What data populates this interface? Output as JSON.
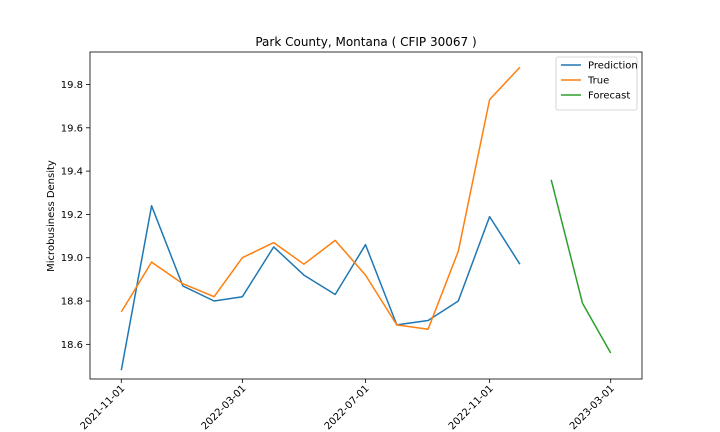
{
  "chart_data": {
    "type": "line",
    "title": "Park County, Montana ( CFIP 30067 )",
    "xlabel": "",
    "ylabel": "Microbusiness Density",
    "x_ticks": [
      "2021-11-01",
      "2022-03-01",
      "2022-07-01",
      "2022-11-01",
      "2023-03-01"
    ],
    "y_ticks": [
      "18.6",
      "18.8",
      "19.0",
      "19.2",
      "19.4",
      "19.6",
      "19.8"
    ],
    "ylim": [
      18.44,
      19.95
    ],
    "xlim": [
      "2021-10-01",
      "2023-04-01"
    ],
    "grid": false,
    "legend_position": "top-right",
    "series": [
      {
        "name": "Prediction",
        "color": "#1f77b4",
        "points": [
          {
            "x": "2021-11-01",
            "y": 18.48
          },
          {
            "x": "2021-12-01",
            "y": 19.24
          },
          {
            "x": "2022-01-01",
            "y": 18.87
          },
          {
            "x": "2022-02-01",
            "y": 18.8
          },
          {
            "x": "2022-03-01",
            "y": 18.82
          },
          {
            "x": "2022-04-01",
            "y": 19.05
          },
          {
            "x": "2022-05-01",
            "y": 18.92
          },
          {
            "x": "2022-06-01",
            "y": 18.83
          },
          {
            "x": "2022-07-01",
            "y": 19.06
          },
          {
            "x": "2022-08-01",
            "y": 18.69
          },
          {
            "x": "2022-09-01",
            "y": 18.71
          },
          {
            "x": "2022-10-01",
            "y": 18.8
          },
          {
            "x": "2022-11-01",
            "y": 19.19
          },
          {
            "x": "2022-12-01",
            "y": 18.97
          }
        ]
      },
      {
        "name": "True",
        "color": "#ff7f0e",
        "points": [
          {
            "x": "2021-11-01",
            "y": 18.75
          },
          {
            "x": "2021-12-01",
            "y": 18.98
          },
          {
            "x": "2022-01-01",
            "y": 18.88
          },
          {
            "x": "2022-02-01",
            "y": 18.82
          },
          {
            "x": "2022-03-01",
            "y": 19.0
          },
          {
            "x": "2022-04-01",
            "y": 19.07
          },
          {
            "x": "2022-05-01",
            "y": 18.97
          },
          {
            "x": "2022-06-01",
            "y": 19.08
          },
          {
            "x": "2022-07-01",
            "y": 18.92
          },
          {
            "x": "2022-08-01",
            "y": 18.69
          },
          {
            "x": "2022-09-01",
            "y": 18.67
          },
          {
            "x": "2022-10-01",
            "y": 19.03
          },
          {
            "x": "2022-11-01",
            "y": 19.73
          },
          {
            "x": "2022-12-01",
            "y": 19.88
          }
        ]
      },
      {
        "name": "Forecast",
        "color": "#2ca02c",
        "points": [
          {
            "x": "2023-01-01",
            "y": 19.36
          },
          {
            "x": "2023-02-01",
            "y": 18.79
          },
          {
            "x": "2023-03-01",
            "y": 18.56
          }
        ]
      }
    ]
  }
}
